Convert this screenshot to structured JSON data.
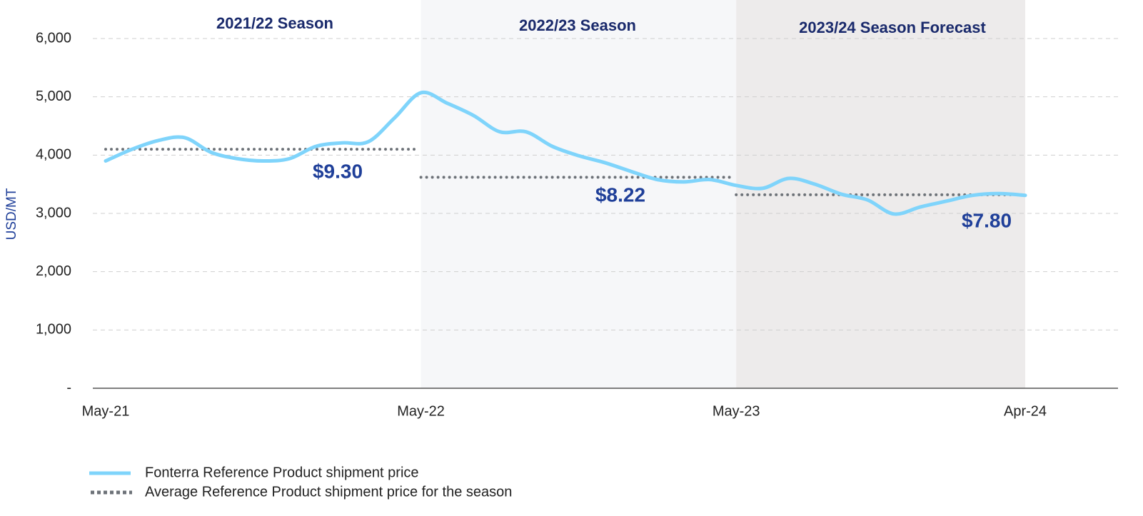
{
  "chart_data": {
    "type": "line",
    "ylabel": "USD/MT",
    "categories": [
      "May-21",
      null,
      null,
      null,
      null,
      null,
      null,
      null,
      null,
      null,
      null,
      null,
      "May-22",
      null,
      null,
      null,
      null,
      null,
      null,
      null,
      null,
      null,
      null,
      null,
      "May-23",
      null,
      null,
      null,
      null,
      null,
      null,
      null,
      null,
      null,
      null,
      "Apr-24"
    ],
    "series": [
      {
        "name": "Fonterra Reference Product shipment price",
        "color": "#7fd4fb",
        "values": [
          3900,
          4100,
          4250,
          4300,
          4050,
          3940,
          3900,
          3940,
          4150,
          4210,
          4230,
          4640,
          5070,
          4890,
          4680,
          4400,
          4400,
          4150,
          3990,
          3870,
          3720,
          3580,
          3540,
          3580,
          3480,
          3430,
          3600,
          3500,
          3330,
          3230,
          2990,
          3110,
          3210,
          3310,
          3340,
          3310
        ]
      }
    ],
    "average_series": {
      "name": "Average Reference Product shipment price for the season",
      "color": "#6d7278"
    },
    "seasons": [
      {
        "title": "2021/22 Season",
        "price": "$9.30",
        "average": 4100
      },
      {
        "title": "2022/23 Season",
        "price": "$8.22",
        "average": 3620
      },
      {
        "title": "2023/24 Season Forecast",
        "price": "$7.80",
        "average": 3320
      }
    ],
    "ylim": [
      0,
      6000
    ],
    "yticks": [
      {
        "value": 0,
        "label": "-"
      },
      {
        "value": 1000,
        "label": "1,000"
      },
      {
        "value": 2000,
        "label": "2,000"
      },
      {
        "value": 3000,
        "label": "3,000"
      },
      {
        "value": 4000,
        "label": "4,000"
      },
      {
        "value": 5000,
        "label": "5,000"
      },
      {
        "value": 6000,
        "label": "6,000"
      }
    ],
    "grid": true
  }
}
